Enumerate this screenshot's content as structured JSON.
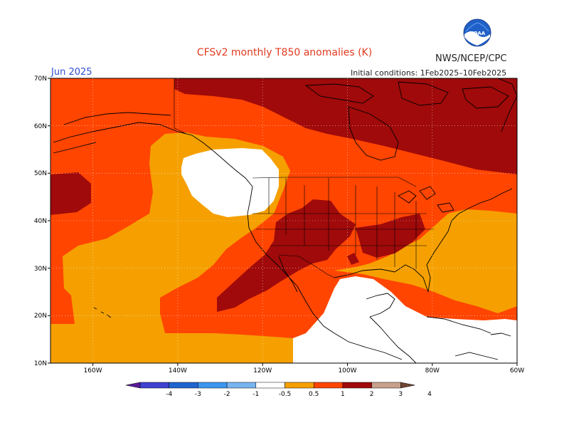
{
  "title": "CFSv2 monthly T850 anomalies (K)",
  "agency": "NWS/NCEP/CPC",
  "logo_text": "NOAA",
  "forecast_month": "Jun 2025",
  "initial_conditions": "Initial conditions: 1Feb2025–10Feb2025",
  "map": {
    "lon_range": [
      -170,
      -60
    ],
    "lat_range": [
      10,
      70
    ],
    "lat_labels": [
      "70N",
      "60N",
      "50N",
      "40N",
      "30N",
      "20N",
      "10N"
    ],
    "lon_labels": [
      "160W",
      "140W",
      "120W",
      "100W",
      "80W",
      "60W"
    ]
  },
  "legend": {
    "units": "K",
    "ticks": [
      "-4",
      "-3",
      "-2",
      "-1",
      "-0.5",
      "0.5",
      "1",
      "2",
      "3",
      "4"
    ],
    "colors": [
      "#5a1a9a",
      "#4040d0",
      "#1e64d0",
      "#3c96f0",
      "#78b4f0",
      "#ffffff",
      "#f5a000",
      "#ff4500",
      "#a00a0a",
      "#c8a08c",
      "#6e4632"
    ]
  },
  "colors": {
    "white_band": "#ffffff",
    "range_0_5_to_1": "#f5a000",
    "range_1_to_2": "#ff4500",
    "range_2_to_3": "#a00a0a",
    "title": "#e03a1e",
    "period": "#3050d0"
  }
}
